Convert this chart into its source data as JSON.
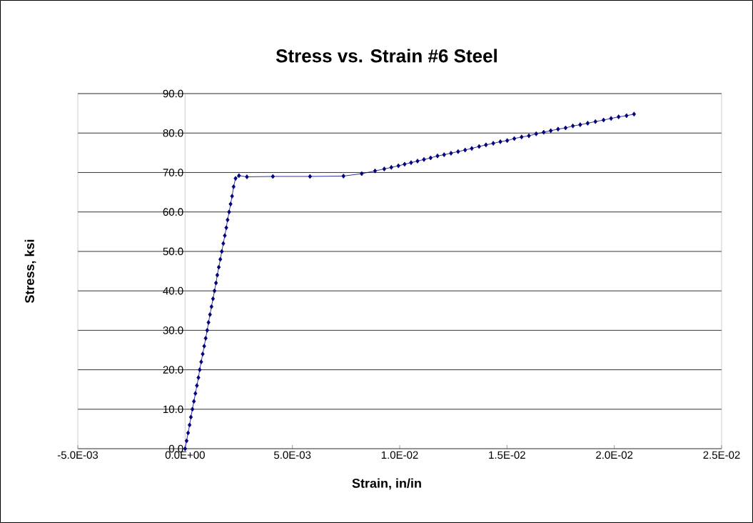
{
  "chart_data": {
    "type": "line",
    "title": "Stress vs. Strain #6 Steel",
    "xlabel": "Strain, in/in",
    "ylabel": "Stress, ksi",
    "xlim": [
      -0.005,
      0.025
    ],
    "xticks": [
      {
        "value": -0.005,
        "label": "-5.0E-03"
      },
      {
        "value": 0,
        "label": "0.0E+00"
      },
      {
        "value": 0.005,
        "label": "5.0E-03"
      },
      {
        "value": 0.01,
        "label": "1.0E-02"
      },
      {
        "value": 0.015,
        "label": "1.5E-02"
      },
      {
        "value": 0.02,
        "label": "2.0E-02"
      },
      {
        "value": 0.025,
        "label": "2.5E-02"
      }
    ],
    "ylim": [
      0,
      90
    ],
    "yticks": [
      {
        "value": 0,
        "label": "0.0"
      },
      {
        "value": 10,
        "label": "10.0"
      },
      {
        "value": 20,
        "label": "20.0"
      },
      {
        "value": 30,
        "label": "30.0"
      },
      {
        "value": 40,
        "label": "40.0"
      },
      {
        "value": 50,
        "label": "50.0"
      },
      {
        "value": 60,
        "label": "60.0"
      },
      {
        "value": 70,
        "label": "70.0"
      },
      {
        "value": 80,
        "label": "80.0"
      },
      {
        "value": 90,
        "label": "90.0"
      }
    ],
    "grid": "y",
    "marker": "diamond",
    "line_style": "solid",
    "series": [
      {
        "color": "#000080",
        "x": [
          0,
          7e-05,
          0.00014,
          0.00021,
          0.00027,
          0.00034,
          0.00041,
          0.00048,
          0.00055,
          0.00062,
          0.00068,
          0.00075,
          0.00082,
          0.00089,
          0.00096,
          0.00103,
          0.00109,
          0.00116,
          0.00123,
          0.0013,
          0.00137,
          0.00144,
          0.0015,
          0.00157,
          0.00164,
          0.00171,
          0.00178,
          0.00185,
          0.00192,
          0.00198,
          0.00205,
          0.00212,
          0.00219,
          0.00226,
          0.00235,
          0.00251,
          0.00288,
          0.00409,
          0.00582,
          0.00738,
          0.00823,
          0.00885,
          0.00928,
          0.00961,
          0.00994,
          0.01023,
          0.01053,
          0.01083,
          0.01113,
          0.01144,
          0.01176,
          0.01207,
          0.01239,
          0.01272,
          0.01305,
          0.01336,
          0.0137,
          0.01402,
          0.01436,
          0.01469,
          0.01501,
          0.01534,
          0.01568,
          0.01602,
          0.01636,
          0.01671,
          0.01704,
          0.01738,
          0.01773,
          0.01807,
          0.01841,
          0.01876,
          0.01912,
          0.0195,
          0.01985,
          0.0202,
          0.02057,
          0.02092
        ],
        "values": [
          0,
          2,
          4,
          6,
          8,
          10,
          12,
          14,
          16,
          18,
          20,
          22,
          24,
          26,
          28,
          30,
          32,
          34,
          36,
          38,
          40,
          42,
          44,
          46,
          48,
          50,
          52,
          54,
          56,
          58,
          60,
          62,
          64,
          66.4,
          68.5,
          69.2,
          68.9,
          69.0,
          69.0,
          69.1,
          69.7,
          70.4,
          70.9,
          71.3,
          71.7,
          72.1,
          72.5,
          72.9,
          73.3,
          73.7,
          74.2,
          74.5,
          74.9,
          75.3,
          75.7,
          76.1,
          76.6,
          77.0,
          77.4,
          77.8,
          78.1,
          78.6,
          79.0,
          79.3,
          79.8,
          80.2,
          80.6,
          81.0,
          81.3,
          81.8,
          82.1,
          82.5,
          82.9,
          83.3,
          83.7,
          84.1,
          84.4,
          84.8
        ]
      }
    ]
  }
}
